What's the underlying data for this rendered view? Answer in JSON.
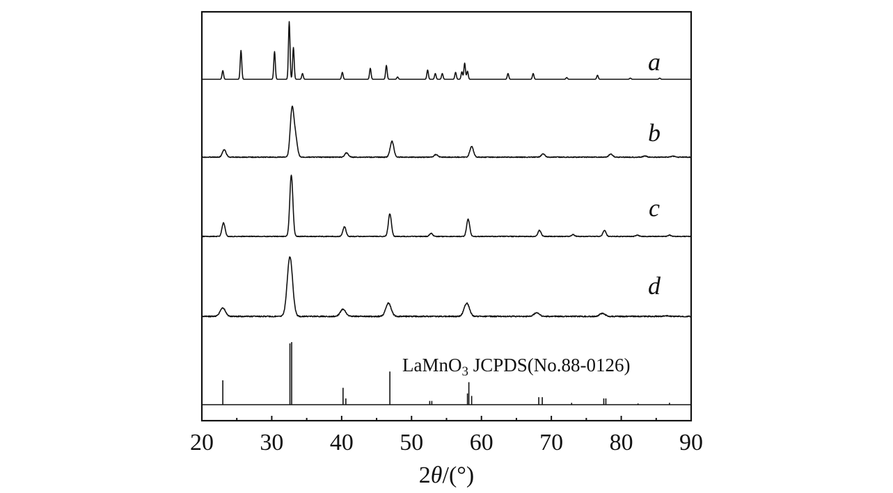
{
  "chart_data": {
    "type": "line",
    "title": "",
    "xlabel_parts": {
      "prefix": "2",
      "symbol": "θ",
      "suffix": "/(°)"
    },
    "ylabel": "",
    "xlim": [
      20,
      90
    ],
    "xticks": [
      20,
      30,
      40,
      50,
      60,
      70,
      80,
      90
    ],
    "ytick_labels": "none",
    "grid": false,
    "legend": "none",
    "series": [
      {
        "name": "a",
        "peaks": [
          {
            "x": 23.0,
            "h": 0.15
          },
          {
            "x": 25.6,
            "h": 0.5
          },
          {
            "x": 30.4,
            "h": 0.48
          },
          {
            "x": 32.5,
            "h": 1.0
          },
          {
            "x": 33.1,
            "h": 0.55
          },
          {
            "x": 34.4,
            "h": 0.1
          },
          {
            "x": 40.1,
            "h": 0.12
          },
          {
            "x": 44.1,
            "h": 0.19
          },
          {
            "x": 46.4,
            "h": 0.24
          },
          {
            "x": 48.0,
            "h": 0.04
          },
          {
            "x": 52.3,
            "h": 0.16
          },
          {
            "x": 53.4,
            "h": 0.1
          },
          {
            "x": 54.4,
            "h": 0.1
          },
          {
            "x": 56.3,
            "h": 0.12
          },
          {
            "x": 57.2,
            "h": 0.13
          },
          {
            "x": 57.6,
            "h": 0.28
          },
          {
            "x": 58.0,
            "h": 0.14
          },
          {
            "x": 63.8,
            "h": 0.1
          },
          {
            "x": 67.4,
            "h": 0.1
          },
          {
            "x": 72.2,
            "h": 0.03
          },
          {
            "x": 76.6,
            "h": 0.07
          },
          {
            "x": 81.3,
            "h": 0.02
          },
          {
            "x": 85.5,
            "h": 0.02
          }
        ]
      },
      {
        "name": "b",
        "peaks": [
          {
            "x": 23.2,
            "h": 0.14
          },
          {
            "x": 32.9,
            "h": 0.9
          },
          {
            "x": 33.4,
            "h": 0.35
          },
          {
            "x": 40.7,
            "h": 0.08
          },
          {
            "x": 47.2,
            "h": 0.3
          },
          {
            "x": 53.5,
            "h": 0.05
          },
          {
            "x": 58.6,
            "h": 0.2
          },
          {
            "x": 68.8,
            "h": 0.06
          },
          {
            "x": 78.5,
            "h": 0.06
          },
          {
            "x": 83.4,
            "h": 0.02
          },
          {
            "x": 87.4,
            "h": 0.02
          }
        ]
      },
      {
        "name": "c",
        "peaks": [
          {
            "x": 23.1,
            "h": 0.22
          },
          {
            "x": 32.8,
            "h": 1.0
          },
          {
            "x": 40.4,
            "h": 0.16
          },
          {
            "x": 46.9,
            "h": 0.37
          },
          {
            "x": 52.8,
            "h": 0.05
          },
          {
            "x": 58.1,
            "h": 0.28
          },
          {
            "x": 68.3,
            "h": 0.1
          },
          {
            "x": 73.1,
            "h": 0.03
          },
          {
            "x": 77.6,
            "h": 0.1
          },
          {
            "x": 82.3,
            "h": 0.02
          },
          {
            "x": 86.9,
            "h": 0.02
          }
        ]
      },
      {
        "name": "d",
        "peaks": [
          {
            "x": 23.0,
            "h": 0.14
          },
          {
            "x": 32.6,
            "h": 1.0
          },
          {
            "x": 40.2,
            "h": 0.12
          },
          {
            "x": 46.7,
            "h": 0.22
          },
          {
            "x": 57.9,
            "h": 0.22
          },
          {
            "x": 67.9,
            "h": 0.06
          },
          {
            "x": 77.3,
            "h": 0.05
          },
          {
            "x": 86.5,
            "h": 0.01
          }
        ]
      }
    ],
    "reference": {
      "name_parts": {
        "pre": "LaMnO",
        "sub": "3",
        "post": " JCPDS(No.88-0126)"
      },
      "lines": [
        {
          "x": 23.0,
          "h": 0.39
        },
        {
          "x": 32.6,
          "h": 0.98
        },
        {
          "x": 32.85,
          "h": 1.0
        },
        {
          "x": 40.2,
          "h": 0.27
        },
        {
          "x": 40.6,
          "h": 0.1
        },
        {
          "x": 46.9,
          "h": 0.53
        },
        {
          "x": 52.6,
          "h": 0.06
        },
        {
          "x": 52.9,
          "h": 0.06
        },
        {
          "x": 58.0,
          "h": 0.18
        },
        {
          "x": 58.2,
          "h": 0.36
        },
        {
          "x": 58.6,
          "h": 0.14
        },
        {
          "x": 68.2,
          "h": 0.12
        },
        {
          "x": 68.7,
          "h": 0.12
        },
        {
          "x": 72.9,
          "h": 0.03
        },
        {
          "x": 77.5,
          "h": 0.1
        },
        {
          "x": 77.8,
          "h": 0.1
        },
        {
          "x": 82.4,
          "h": 0.02
        },
        {
          "x": 86.9,
          "h": 0.03
        }
      ]
    }
  }
}
